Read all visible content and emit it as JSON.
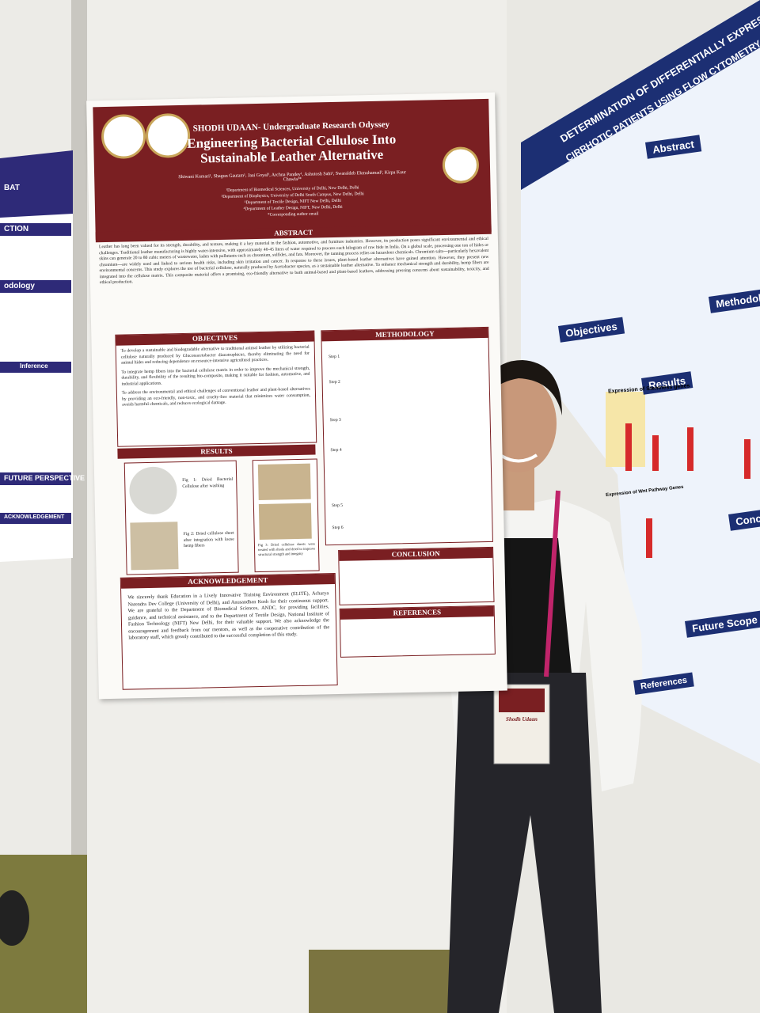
{
  "main_poster": {
    "event": "SHODH UDAAN- Undergraduate Research Odyssey",
    "title": "Engineering Bacterial Cellulose Into Sustainable Leather Alternative",
    "authors": "Shiwani Kumari¹, Shagun Gautam¹, Jaai Goyal², Archna Pandey¹, Ashutosh Sahi², Swaraldeb Ekmuhamad², Kirpa Kaur Chawla³*",
    "affiliations": [
      "¹Department of Biomedical Sciences, University of Delhi, New Delhi, Delhi",
      "²Department of Biophysics, University of Delhi South Campus, New Delhi, Delhi",
      "³Department of Textile Design, NIFT New Delhi, Delhi",
      "⁴Department of Leather Design, NIFT, New Delhi, Delhi",
      "*Corresponding author email"
    ],
    "abstract": {
      "heading": "ABSTRACT",
      "text": "Leather has long been valued for its strength, durability, and texture, making it a key material in the fashion, automotive, and furniture industries. However, its production poses significant environmental and ethical challenges. Traditional leather manufacturing is highly water-intensive, with approximately 40-45 liters of water required to process each kilogram of raw hide in India. On a global scale, processing one ton of hides or skins can generate 20 to 80 cubic meters of wastewater, laden with pollutants such as chromium, sulfides, and fats. Moreover, the tanning process relies on hazardous chemicals. Chromium salts—particularly hexavalent chromium—are widely used and linked to serious health risks, including skin irritation and cancer. In response to these issues, plant-based leather alternatives have gained attention. However, they present new environmental concerns. This study explores the use of bacterial cellulose, naturally produced by Acetobacter species, as a sustainable leather alternative. To enhance mechanical strength and durability, hemp fibers are integrated into the cellulose matrix. This composite material offers a promising, eco-friendly alternative to both animal-based and plant-based leathers, addressing pressing concerns about sustainability, toxicity, and ethical production."
    },
    "objectives": {
      "heading": "OBJECTIVES",
      "items": [
        "To develop a sustainable and biodegradable alternative to traditional animal leather by utilizing bacterial cellulose naturally produced by Gluconacetobacter diazotrophicus, thereby eliminating the need for animal hides and reducing dependence on resource-intensive agricultural practices.",
        "To integrate hemp fibers into the bacterial cellulose matrix in order to improve the mechanical strength, durability, and flexibility of the resulting bio-composite, making it suitable for fashion, automotive, and industrial applications.",
        "To address the environmental and ethical challenges of conventional leather and plant-based alternatives by providing an eco-friendly, non-toxic, and cruelty-free material that minimizes water consumption, avoids harmful chemicals, and reduces ecological damage."
      ]
    },
    "methodology": {
      "heading": "METHODOLOGY",
      "steps": [
        "Step 1",
        "Step 2",
        "Step 3",
        "Step 4",
        "Step 5",
        "Step 6"
      ]
    },
    "results": {
      "heading": "RESULTS",
      "captions": [
        "Fig 1: Dried Bacterial Cellulose after washing",
        "Fig 2: Dried cellulose sheet after integration with loose hemp fibers",
        "Fig 3: Dried cellulose sheets were treated with shoda and dried to improve structural strength and integrity"
      ]
    },
    "acknowledgement": {
      "heading": "ACKNOWLEDGEMENT",
      "text": "We sincerely thank Education in a Lively Innovative Training Environment (ELITE), Acharya Narendra Dev College (University of Delhi), and Anusandhan Kosh for their continuous support. We are grateful to the Department of Biomedical Sciences, ANDC, for providing facilities, guidance, and technical assistance, and to the Department of Textile Design, National Institute of Fashion Technology (NIFT) New Delhi, for their valuable support. We also acknowledge the encouragement and feedback from our mentors, as well as the cooperative contribution of the laboratory staff, which greatly contributed to the successful completion of this study."
    },
    "conclusion": {
      "heading": "CONCLUSION"
    },
    "references": {
      "heading": "REFERENCES"
    }
  },
  "right_poster": {
    "title": "DETERMINATION OF DIFFERENTIALLY EXPRESSED M",
    "subtitle": "CIRRHOTIC PATIENTS USING FLOW CYTOMETRY AND RE",
    "headings": [
      "Abstract",
      "Objectives",
      "Methodolgy",
      "Results",
      "Conclu",
      "Future Scope",
      "References"
    ],
    "chart_titles": [
      "Expression of Stemness genes",
      "Expression of Wnt Pathway Genes"
    ]
  },
  "left_poster": {
    "headings": [
      "BAT",
      "CTION",
      "odology",
      "Inference",
      "FUTURE PERSPECTIVE",
      "ACKNOWLEDGEMENT"
    ]
  },
  "badge": {
    "text": "Shodh Udaan"
  }
}
